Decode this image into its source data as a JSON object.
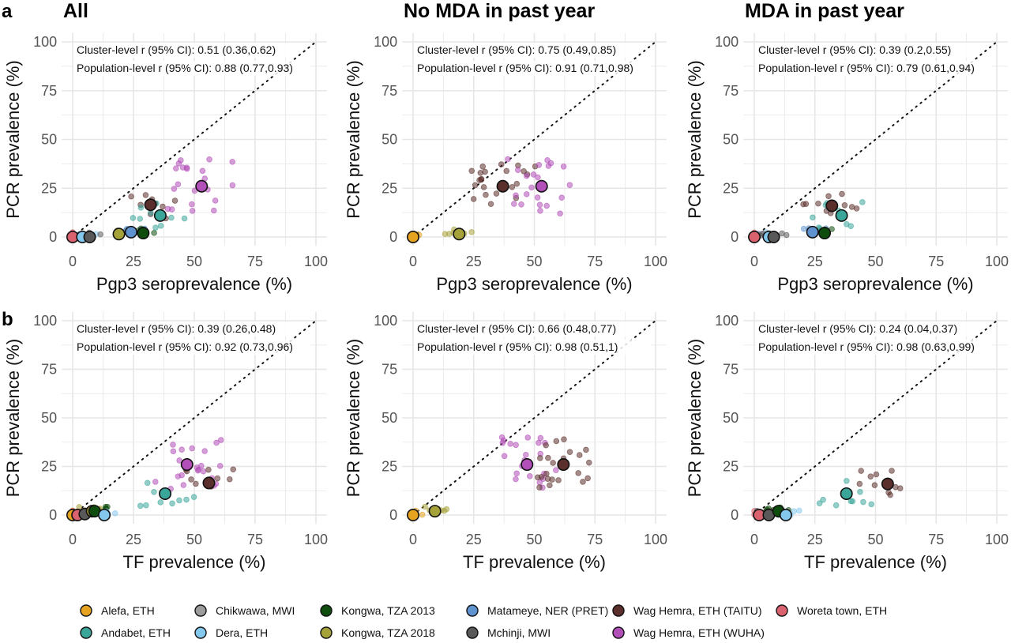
{
  "figure": {
    "row_labels": [
      "a",
      "b"
    ],
    "legend": [
      {
        "name": "Alefa, ETH",
        "color": "#E5A31F"
      },
      {
        "name": "Andabet, ETH",
        "color": "#3AA69A"
      },
      {
        "name": "Chikwawa, MWI",
        "color": "#9C9C9C"
      },
      {
        "name": "Dera, ETH",
        "color": "#85C8EE"
      },
      {
        "name": "Kongwa, TZA 2013",
        "color": "#0E4D0E"
      },
      {
        "name": "Kongwa, TZA 2018",
        "color": "#A6A23A"
      },
      {
        "name": "Matameye, NER (PRET)",
        "color": "#5F93CF"
      },
      {
        "name": "Mchinji, MWI",
        "color": "#595959"
      },
      {
        "name": "Wag Hemra, ETH (TAITU)",
        "color": "#5B2F2B"
      },
      {
        "name": "Wag Hemra, ETH (WUHA)",
        "color": "#B24FB8"
      },
      {
        "name": "Woreta town, ETH",
        "color": "#D9626E"
      }
    ]
  },
  "chart_data": [
    {
      "type": "scatter",
      "row": "a",
      "title": "All",
      "xlabel": "Pgp3 seroprevalence (%)",
      "ylabel": "PCR prevalence (%)",
      "xlim": [
        0,
        100
      ],
      "ylim": [
        0,
        100
      ],
      "xticks": [
        "0",
        "25",
        "50",
        "75",
        "100"
      ],
      "yticks": [
        "0",
        "25",
        "50",
        "75",
        "100"
      ],
      "annotations": [
        "Cluster-level r (95% CI): 0.51 (0.36,0.62)",
        "Population-level r (95% CI): 0.88 (0.77,0.93)"
      ],
      "reference_line": "y = x",
      "population_points": [
        {
          "series": "Woreta town, ETH",
          "x": 0,
          "y": 0
        },
        {
          "series": "Dera, ETH",
          "x": 4,
          "y": 0
        },
        {
          "series": "Mchinji, MWI",
          "x": 7,
          "y": 0
        },
        {
          "series": "Kongwa, TZA 2018",
          "x": 19,
          "y": 1.5
        },
        {
          "series": "Matameye, NER (PRET)",
          "x": 24,
          "y": 2.5
        },
        {
          "series": "Kongwa, TZA 2013",
          "x": 29,
          "y": 2
        },
        {
          "series": "Wag Hemra, ETH (TAITU)",
          "x": 32,
          "y": 16.5
        },
        {
          "series": "Andabet, ETH",
          "x": 36,
          "y": 11
        },
        {
          "series": "Wag Hemra, ETH (WUHA)",
          "x": 53,
          "y": 26
        }
      ]
    },
    {
      "type": "scatter",
      "row": "a",
      "title": "No MDA in past year",
      "xlabel": "Pgp3 seroprevalence (%)",
      "ylabel": "PCR prevalence (%)",
      "xlim": [
        0,
        100
      ],
      "ylim": [
        0,
        100
      ],
      "xticks": [
        "0",
        "25",
        "50",
        "75",
        "100"
      ],
      "yticks": [
        "0",
        "25",
        "50",
        "75",
        "100"
      ],
      "annotations": [
        "Cluster-level r (95% CI): 0.75 (0.49,0.85)",
        "Population-level r (95% CI): 0.91 (0.71,0.98)"
      ],
      "reference_line": "y = x",
      "population_points": [
        {
          "series": "Alefa, ETH",
          "x": 0,
          "y": 0
        },
        {
          "series": "Kongwa, TZA 2018",
          "x": 19,
          "y": 1.5
        },
        {
          "series": "Wag Hemra, ETH (TAITU)",
          "x": 37,
          "y": 26
        },
        {
          "series": "Wag Hemra, ETH (WUHA)",
          "x": 53,
          "y": 26
        }
      ]
    },
    {
      "type": "scatter",
      "row": "a",
      "title": "MDA in past year",
      "xlabel": "Pgp3 seroprevalence (%)",
      "ylabel": "PCR prevalence (%)",
      "xlim": [
        0,
        100
      ],
      "ylim": [
        0,
        100
      ],
      "xticks": [
        "0",
        "25",
        "50",
        "75",
        "100"
      ],
      "yticks": [
        "0",
        "25",
        "50",
        "75",
        "100"
      ],
      "annotations": [
        "Cluster-level r (95% CI): 0.39 (0.2,0.55)",
        "Population-level r (95% CI): 0.79 (0.61,0.94)"
      ],
      "reference_line": "y = x",
      "population_points": [
        {
          "series": "Woreta town, ETH",
          "x": 0,
          "y": 0
        },
        {
          "series": "Dera, ETH",
          "x": 6,
          "y": 0
        },
        {
          "series": "Mchinji, MWI",
          "x": 8,
          "y": 0
        },
        {
          "series": "Matameye, NER (PRET)",
          "x": 24,
          "y": 2.5
        },
        {
          "series": "Kongwa, TZA 2013",
          "x": 29,
          "y": 2
        },
        {
          "series": "Wag Hemra, ETH (TAITU)",
          "x": 32,
          "y": 16
        },
        {
          "series": "Andabet, ETH",
          "x": 36,
          "y": 11
        }
      ]
    },
    {
      "type": "scatter",
      "row": "b",
      "title": "",
      "xlabel": "TF prevalence (%)",
      "ylabel": "PCR prevalence (%)",
      "xlim": [
        0,
        100
      ],
      "ylim": [
        0,
        100
      ],
      "xticks": [
        "0",
        "25",
        "50",
        "75",
        "100"
      ],
      "yticks": [
        "0",
        "25",
        "50",
        "75",
        "100"
      ],
      "annotations": [
        "Cluster-level r (95% CI): 0.39 (0.26,0.48)",
        "Population-level r (95% CI): 0.92 (0.73,0.96)"
      ],
      "reference_line": "y = x",
      "population_points": [
        {
          "series": "Alefa, ETH",
          "x": 0,
          "y": 0
        },
        {
          "series": "Woreta town, ETH",
          "x": 2,
          "y": 0
        },
        {
          "series": "Mchinji, MWI",
          "x": 5,
          "y": 0.5
        },
        {
          "series": "Kongwa, TZA 2018",
          "x": 8,
          "y": 2
        },
        {
          "series": "Kongwa, TZA 2013",
          "x": 9,
          "y": 2
        },
        {
          "series": "Dera, ETH",
          "x": 13,
          "y": 0
        },
        {
          "series": "Andabet, ETH",
          "x": 38,
          "y": 11
        },
        {
          "series": "Wag Hemra, ETH (WUHA)",
          "x": 47,
          "y": 26
        },
        {
          "series": "Wag Hemra, ETH (TAITU)",
          "x": 56,
          "y": 16.5
        }
      ]
    },
    {
      "type": "scatter",
      "row": "b",
      "title": "",
      "xlabel": "TF prevalence (%)",
      "ylabel": "PCR prevalence (%)",
      "xlim": [
        0,
        100
      ],
      "ylim": [
        0,
        100
      ],
      "xticks": [
        "0",
        "25",
        "50",
        "75",
        "100"
      ],
      "yticks": [
        "0",
        "25",
        "50",
        "75",
        "100"
      ],
      "annotations": [
        "Cluster-level r (95% CI): 0.66 (0.48,0.77)",
        "Population-level r (95% CI): 0.98 (0.51,1)"
      ],
      "reference_line": "y = x",
      "population_points": [
        {
          "series": "Alefa, ETH",
          "x": 0,
          "y": 0
        },
        {
          "series": "Kongwa, TZA 2018",
          "x": 9,
          "y": 2
        },
        {
          "series": "Wag Hemra, ETH (WUHA)",
          "x": 47,
          "y": 26
        },
        {
          "series": "Wag Hemra, ETH (TAITU)",
          "x": 62,
          "y": 26
        }
      ]
    },
    {
      "type": "scatter",
      "row": "b",
      "title": "",
      "xlabel": "TF prevalence (%)",
      "ylabel": "PCR prevalence (%)",
      "xlim": [
        0,
        100
      ],
      "ylim": [
        0,
        100
      ],
      "xticks": [
        "0",
        "25",
        "50",
        "75",
        "100"
      ],
      "yticks": [
        "0",
        "25",
        "50",
        "75",
        "100"
      ],
      "annotations": [
        "Cluster-level r (95% CI): 0.24 (0.04,0.37)",
        "Population-level r (95% CI): 0.98 (0.63,0.99)"
      ],
      "reference_line": "y = x",
      "population_points": [
        {
          "series": "Woreta town, ETH",
          "x": 2,
          "y": 0
        },
        {
          "series": "Mchinji, MWI",
          "x": 6,
          "y": 0
        },
        {
          "series": "Kongwa, TZA 2013",
          "x": 10,
          "y": 2
        },
        {
          "series": "Dera, ETH",
          "x": 13,
          "y": 0
        },
        {
          "series": "Andabet, ETH",
          "x": 38,
          "y": 11
        },
        {
          "series": "Wag Hemra, ETH (TAITU)",
          "x": 55,
          "y": 16
        }
      ]
    }
  ]
}
